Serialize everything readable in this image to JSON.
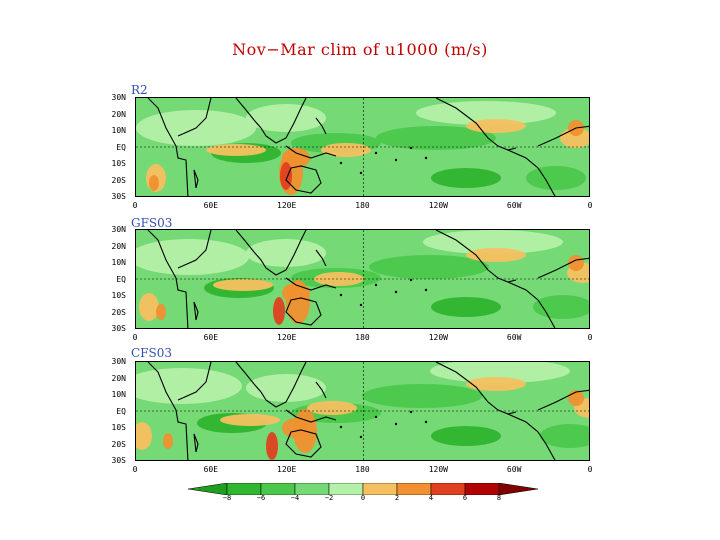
{
  "title": "Nov−Mar clim of u1000 (m/s)",
  "lat_labels": [
    "30N",
    "20N",
    "10N",
    "EQ",
    "10S",
    "20S",
    "30S"
  ],
  "lon_labels": [
    "0",
    "60E",
    "120E",
    "180",
    "120W",
    "60W",
    "0"
  ],
  "panels": [
    {
      "label": "R2"
    },
    {
      "label": "GFS03"
    },
    {
      "label": "CFS03"
    }
  ],
  "colorbar": {
    "labels": [
      "−8",
      "−6",
      "−4",
      "−2",
      "0",
      "2",
      "4",
      "6",
      "8"
    ],
    "colors": [
      "#1f9e1f",
      "#2fb52f",
      "#4bc84b",
      "#75d975",
      "#b4f0a8",
      "#f5c060",
      "#f09030",
      "#e04020",
      "#b00000",
      "#800000"
    ]
  }
}
